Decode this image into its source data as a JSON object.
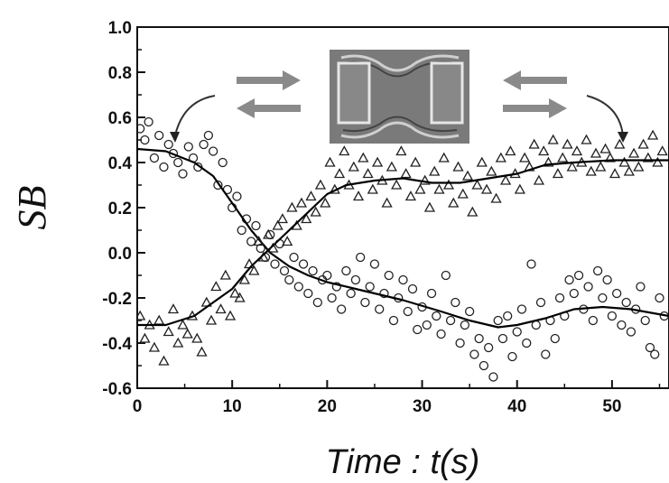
{
  "chart_data": {
    "type": "scatter",
    "title": "",
    "xlabel": "Time : t(s)",
    "ylabel": "SB",
    "xlim": [
      0,
      56
    ],
    "ylim": [
      -0.6,
      1.0
    ],
    "x_ticks": [
      0,
      10,
      20,
      30,
      40,
      50
    ],
    "x_tick_labels": [
      "0",
      "10",
      "20",
      "30",
      "40",
      "50"
    ],
    "y_ticks": [
      1.0,
      0.8,
      0.6,
      0.4,
      0.2,
      0.0,
      -0.2,
      -0.4,
      -0.6
    ],
    "y_tick_labels": [
      "1.0",
      "0.8",
      "0.6",
      "0.4",
      "0.2",
      "0.0",
      "-0.2",
      "-0.4",
      "-0.6"
    ],
    "grid": false,
    "legend": "none",
    "inset": "device micrograph with arrows",
    "series": [
      {
        "marker": "circle",
        "color": "#222222",
        "fit": [
          [
            0,
            0.46
          ],
          [
            3,
            0.45
          ],
          [
            6,
            0.4
          ],
          [
            8,
            0.34
          ],
          [
            10,
            0.22
          ],
          [
            12,
            0.1
          ],
          [
            14,
            0.0
          ],
          [
            16,
            -0.06
          ],
          [
            18,
            -0.1
          ],
          [
            20,
            -0.13
          ],
          [
            24,
            -0.17
          ],
          [
            28,
            -0.21
          ],
          [
            32,
            -0.26
          ],
          [
            35,
            -0.3
          ],
          [
            38,
            -0.33
          ],
          [
            40,
            -0.32
          ],
          [
            43,
            -0.29
          ],
          [
            46,
            -0.25
          ],
          [
            49,
            -0.24
          ],
          [
            52,
            -0.25
          ],
          [
            56,
            -0.28
          ]
        ],
        "points": [
          [
            0.3,
            0.55
          ],
          [
            0.8,
            0.5
          ],
          [
            1.2,
            0.58
          ],
          [
            1.8,
            0.42
          ],
          [
            2.3,
            0.52
          ],
          [
            2.8,
            0.38
          ],
          [
            3.3,
            0.48
          ],
          [
            3.8,
            0.44
          ],
          [
            4.3,
            0.4
          ],
          [
            4.8,
            0.35
          ],
          [
            5.4,
            0.47
          ],
          [
            5.9,
            0.42
          ],
          [
            6.4,
            0.38
          ],
          [
            7.0,
            0.48
          ],
          [
            7.5,
            0.52
          ],
          [
            8.0,
            0.45
          ],
          [
            8.5,
            0.3
          ],
          [
            9.0,
            0.4
          ],
          [
            9.5,
            0.28
          ],
          [
            10.0,
            0.2
          ],
          [
            10.5,
            0.25
          ],
          [
            11.0,
            0.1
          ],
          [
            11.5,
            0.15
          ],
          [
            12.0,
            0.05
          ],
          [
            12.5,
            0.12
          ],
          [
            13.0,
            0.02
          ],
          [
            13.5,
            -0.02
          ],
          [
            14.0,
            0.08
          ],
          [
            14.5,
            -0.05
          ],
          [
            15.0,
            0.04
          ],
          [
            15.5,
            -0.08
          ],
          [
            16.0,
            -0.12
          ],
          [
            16.5,
            -0.02
          ],
          [
            17.0,
            -0.15
          ],
          [
            17.5,
            -0.05
          ],
          [
            18.0,
            -0.18
          ],
          [
            18.5,
            -0.08
          ],
          [
            19.0,
            -0.22
          ],
          [
            19.5,
            -0.12
          ],
          [
            20.0,
            -0.1
          ],
          [
            20.5,
            -0.2
          ],
          [
            21.0,
            -0.15
          ],
          [
            21.5,
            -0.25
          ],
          [
            22.0,
            -0.08
          ],
          [
            22.5,
            -0.18
          ],
          [
            23.0,
            -0.12
          ],
          [
            23.5,
            -0.02
          ],
          [
            24.0,
            -0.22
          ],
          [
            24.5,
            -0.15
          ],
          [
            25.0,
            -0.05
          ],
          [
            25.5,
            -0.25
          ],
          [
            26.0,
            -0.18
          ],
          [
            26.5,
            -0.1
          ],
          [
            27.0,
            -0.3
          ],
          [
            27.5,
            -0.2
          ],
          [
            28.0,
            -0.12
          ],
          [
            28.5,
            -0.26
          ],
          [
            29.0,
            -0.16
          ],
          [
            29.5,
            -0.34
          ],
          [
            30.0,
            -0.24
          ],
          [
            30.5,
            -0.32
          ],
          [
            31.0,
            -0.18
          ],
          [
            31.5,
            -0.28
          ],
          [
            32.0,
            -0.36
          ],
          [
            32.5,
            -0.1
          ],
          [
            33.0,
            -0.3
          ],
          [
            33.5,
            -0.22
          ],
          [
            34.0,
            -0.4
          ],
          [
            34.5,
            -0.32
          ],
          [
            35.0,
            -0.26
          ],
          [
            35.5,
            -0.45
          ],
          [
            36.0,
            -0.38
          ],
          [
            36.5,
            -0.5
          ],
          [
            37.0,
            -0.42
          ],
          [
            37.5,
            -0.55
          ],
          [
            38.0,
            -0.3
          ],
          [
            38.5,
            -0.38
          ],
          [
            39.0,
            -0.28
          ],
          [
            39.5,
            -0.46
          ],
          [
            40.0,
            -0.35
          ],
          [
            40.5,
            -0.25
          ],
          [
            41.0,
            -0.4
          ],
          [
            41.5,
            -0.05
          ],
          [
            42.0,
            -0.32
          ],
          [
            42.5,
            -0.22
          ],
          [
            43.0,
            -0.45
          ],
          [
            43.5,
            -0.3
          ],
          [
            44.0,
            -0.38
          ],
          [
            44.5,
            -0.2
          ],
          [
            45.0,
            -0.28
          ],
          [
            45.5,
            -0.12
          ],
          [
            46.0,
            -0.18
          ],
          [
            46.5,
            -0.1
          ],
          [
            47.0,
            -0.25
          ],
          [
            47.5,
            -0.15
          ],
          [
            48.0,
            -0.3
          ],
          [
            48.5,
            -0.08
          ],
          [
            49.0,
            -0.2
          ],
          [
            49.5,
            -0.12
          ],
          [
            50.0,
            -0.28
          ],
          [
            50.5,
            -0.18
          ],
          [
            51.0,
            -0.32
          ],
          [
            51.5,
            -0.22
          ],
          [
            52.0,
            -0.35
          ],
          [
            52.5,
            -0.25
          ],
          [
            53.0,
            -0.15
          ],
          [
            53.5,
            -0.3
          ],
          [
            54.0,
            -0.42
          ],
          [
            54.5,
            -0.45
          ],
          [
            55.0,
            -0.2
          ],
          [
            55.5,
            -0.28
          ]
        ]
      },
      {
        "marker": "triangle",
        "color": "#222222",
        "fit": [
          [
            0,
            -0.32
          ],
          [
            3,
            -0.32
          ],
          [
            6,
            -0.28
          ],
          [
            8,
            -0.22
          ],
          [
            10,
            -0.16
          ],
          [
            12,
            -0.06
          ],
          [
            14,
            0.02
          ],
          [
            16,
            0.1
          ],
          [
            18,
            0.18
          ],
          [
            20,
            0.26
          ],
          [
            22,
            0.3
          ],
          [
            25,
            0.32
          ],
          [
            28,
            0.33
          ],
          [
            31,
            0.31
          ],
          [
            34,
            0.31
          ],
          [
            37,
            0.33
          ],
          [
            40,
            0.35
          ],
          [
            43,
            0.39
          ],
          [
            46,
            0.4
          ],
          [
            50,
            0.41
          ],
          [
            56,
            0.41
          ]
        ],
        "points": [
          [
            0.3,
            -0.28
          ],
          [
            0.8,
            -0.38
          ],
          [
            1.3,
            -0.32
          ],
          [
            1.8,
            -0.42
          ],
          [
            2.3,
            -0.3
          ],
          [
            2.8,
            -0.48
          ],
          [
            3.3,
            -0.35
          ],
          [
            3.8,
            -0.25
          ],
          [
            4.3,
            -0.4
          ],
          [
            4.8,
            -0.32
          ],
          [
            5.3,
            -0.36
          ],
          [
            5.8,
            -0.28
          ],
          [
            6.3,
            -0.38
          ],
          [
            6.8,
            -0.44
          ],
          [
            7.3,
            -0.22
          ],
          [
            7.8,
            -0.3
          ],
          [
            8.3,
            -0.15
          ],
          [
            8.8,
            -0.25
          ],
          [
            9.3,
            -0.1
          ],
          [
            9.8,
            -0.28
          ],
          [
            10.3,
            -0.18
          ],
          [
            10.8,
            -0.2
          ],
          [
            11.3,
            -0.12
          ],
          [
            11.8,
            -0.05
          ],
          [
            12.3,
            -0.08
          ],
          [
            12.8,
            0.05
          ],
          [
            13.3,
            -0.02
          ],
          [
            13.8,
            0.08
          ],
          [
            14.3,
            0.02
          ],
          [
            14.8,
            0.12
          ],
          [
            15.3,
            0.15
          ],
          [
            15.8,
            0.05
          ],
          [
            16.3,
            0.2
          ],
          [
            16.8,
            0.12
          ],
          [
            17.3,
            0.22
          ],
          [
            17.8,
            0.15
          ],
          [
            18.3,
            0.25
          ],
          [
            18.8,
            0.18
          ],
          [
            19.3,
            0.3
          ],
          [
            19.8,
            0.22
          ],
          [
            20.3,
            0.4
          ],
          [
            20.8,
            0.28
          ],
          [
            21.3,
            0.35
          ],
          [
            21.8,
            0.45
          ],
          [
            22.3,
            0.3
          ],
          [
            22.8,
            0.38
          ],
          [
            23.3,
            0.25
          ],
          [
            23.8,
            0.42
          ],
          [
            24.3,
            0.35
          ],
          [
            24.8,
            0.28
          ],
          [
            25.3,
            0.4
          ],
          [
            25.8,
            0.32
          ],
          [
            26.3,
            0.22
          ],
          [
            26.8,
            0.38
          ],
          [
            27.3,
            0.3
          ],
          [
            27.8,
            0.45
          ],
          [
            28.3,
            0.35
          ],
          [
            28.8,
            0.25
          ],
          [
            29.3,
            0.4
          ],
          [
            29.8,
            0.28
          ],
          [
            30.3,
            0.32
          ],
          [
            30.8,
            0.2
          ],
          [
            31.3,
            0.36
          ],
          [
            31.8,
            0.28
          ],
          [
            32.3,
            0.42
          ],
          [
            32.8,
            0.3
          ],
          [
            33.3,
            0.22
          ],
          [
            33.8,
            0.38
          ],
          [
            34.3,
            0.26
          ],
          [
            34.8,
            0.34
          ],
          [
            35.3,
            0.18
          ],
          [
            35.8,
            0.3
          ],
          [
            36.3,
            0.4
          ],
          [
            36.8,
            0.28
          ],
          [
            37.3,
            0.36
          ],
          [
            37.8,
            0.24
          ],
          [
            38.3,
            0.42
          ],
          [
            38.8,
            0.32
          ],
          [
            39.3,
            0.45
          ],
          [
            39.8,
            0.35
          ],
          [
            40.3,
            0.28
          ],
          [
            40.8,
            0.42
          ],
          [
            41.3,
            0.38
          ],
          [
            41.8,
            0.48
          ],
          [
            42.3,
            0.32
          ],
          [
            42.8,
            0.45
          ],
          [
            43.3,
            0.4
          ],
          [
            43.8,
            0.5
          ],
          [
            44.3,
            0.35
          ],
          [
            44.8,
            0.42
          ],
          [
            45.3,
            0.48
          ],
          [
            45.8,
            0.38
          ],
          [
            46.3,
            0.45
          ],
          [
            46.8,
            0.4
          ],
          [
            47.3,
            0.5
          ],
          [
            47.8,
            0.36
          ],
          [
            48.3,
            0.44
          ],
          [
            48.8,
            0.38
          ],
          [
            49.3,
            0.46
          ],
          [
            49.8,
            0.42
          ],
          [
            50.3,
            0.35
          ],
          [
            50.8,
            0.48
          ],
          [
            51.3,
            0.4
          ],
          [
            51.8,
            0.36
          ],
          [
            52.3,
            0.44
          ],
          [
            52.8,
            0.38
          ],
          [
            53.3,
            0.48
          ],
          [
            53.8,
            0.42
          ],
          [
            54.3,
            0.52
          ],
          [
            54.8,
            0.4
          ],
          [
            55.3,
            0.45
          ]
        ]
      }
    ]
  }
}
